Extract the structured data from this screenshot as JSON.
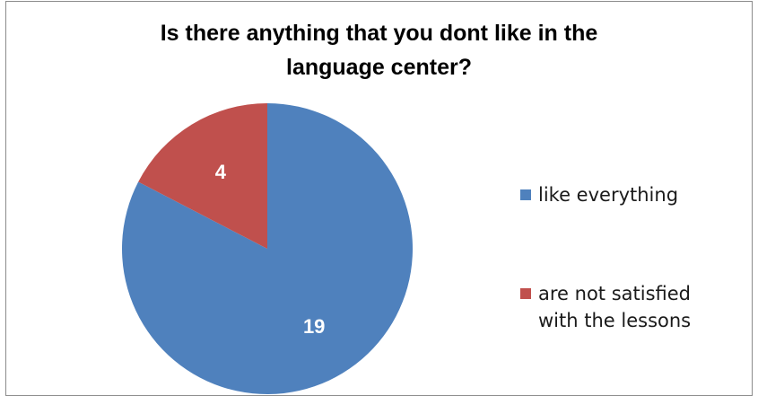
{
  "chart_data": {
    "type": "pie",
    "title": "Is there anything that you dont like in the language center?",
    "title_lines": [
      "Is there anything that you dont like in the",
      "language center?"
    ],
    "slices": [
      {
        "label": "like everything",
        "legend_lines": "like everything",
        "value": 19,
        "color": "#4f81bd"
      },
      {
        "label": "are not satisfied with the lessons",
        "legend_lines": "are not satisfied\nwith the lessons",
        "value": 4,
        "color": "#c0504d"
      }
    ],
    "legend_position": "right",
    "data_label_color": "#ffffff"
  }
}
